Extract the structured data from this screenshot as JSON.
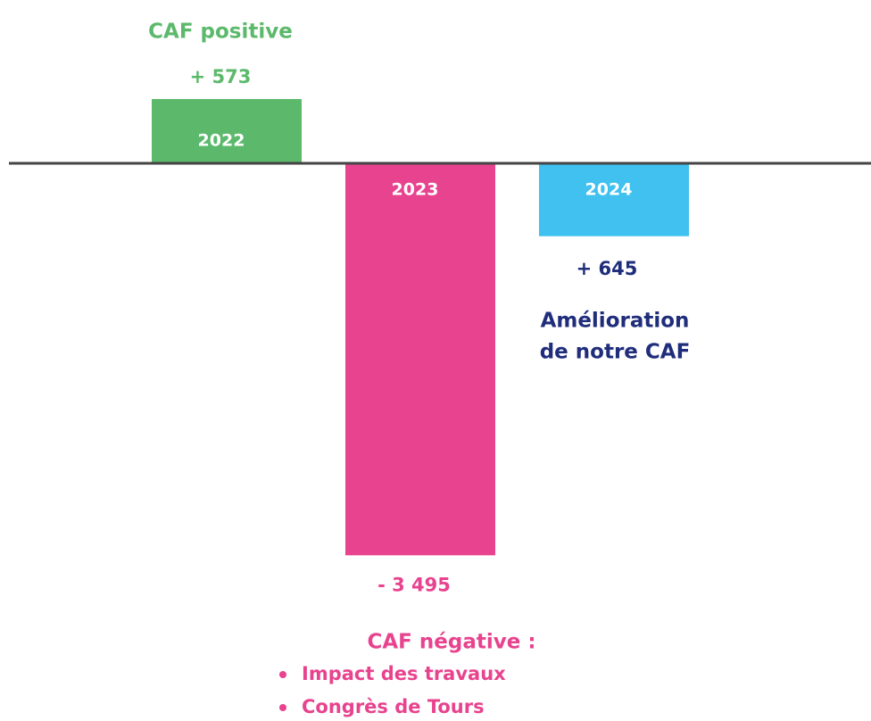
{
  "chart_data": {
    "type": "bar",
    "categories": [
      "2022",
      "2023",
      "2024"
    ],
    "values": [
      573,
      -3495,
      -650
    ],
    "value_labels": [
      "+ 573",
      "- 3 495",
      null
    ],
    "colors": [
      "#5cb96b",
      "#e8438e",
      "#40c1ef"
    ],
    "ylim": [
      -4000,
      1000
    ],
    "annotations": [
      "CAF positive",
      "+ 645",
      "Amélioration",
      "de notre CAF",
      "CAF négative :"
    ],
    "bullets": [
      "Impact des travaux",
      "Congrès de Tours"
    ]
  }
}
